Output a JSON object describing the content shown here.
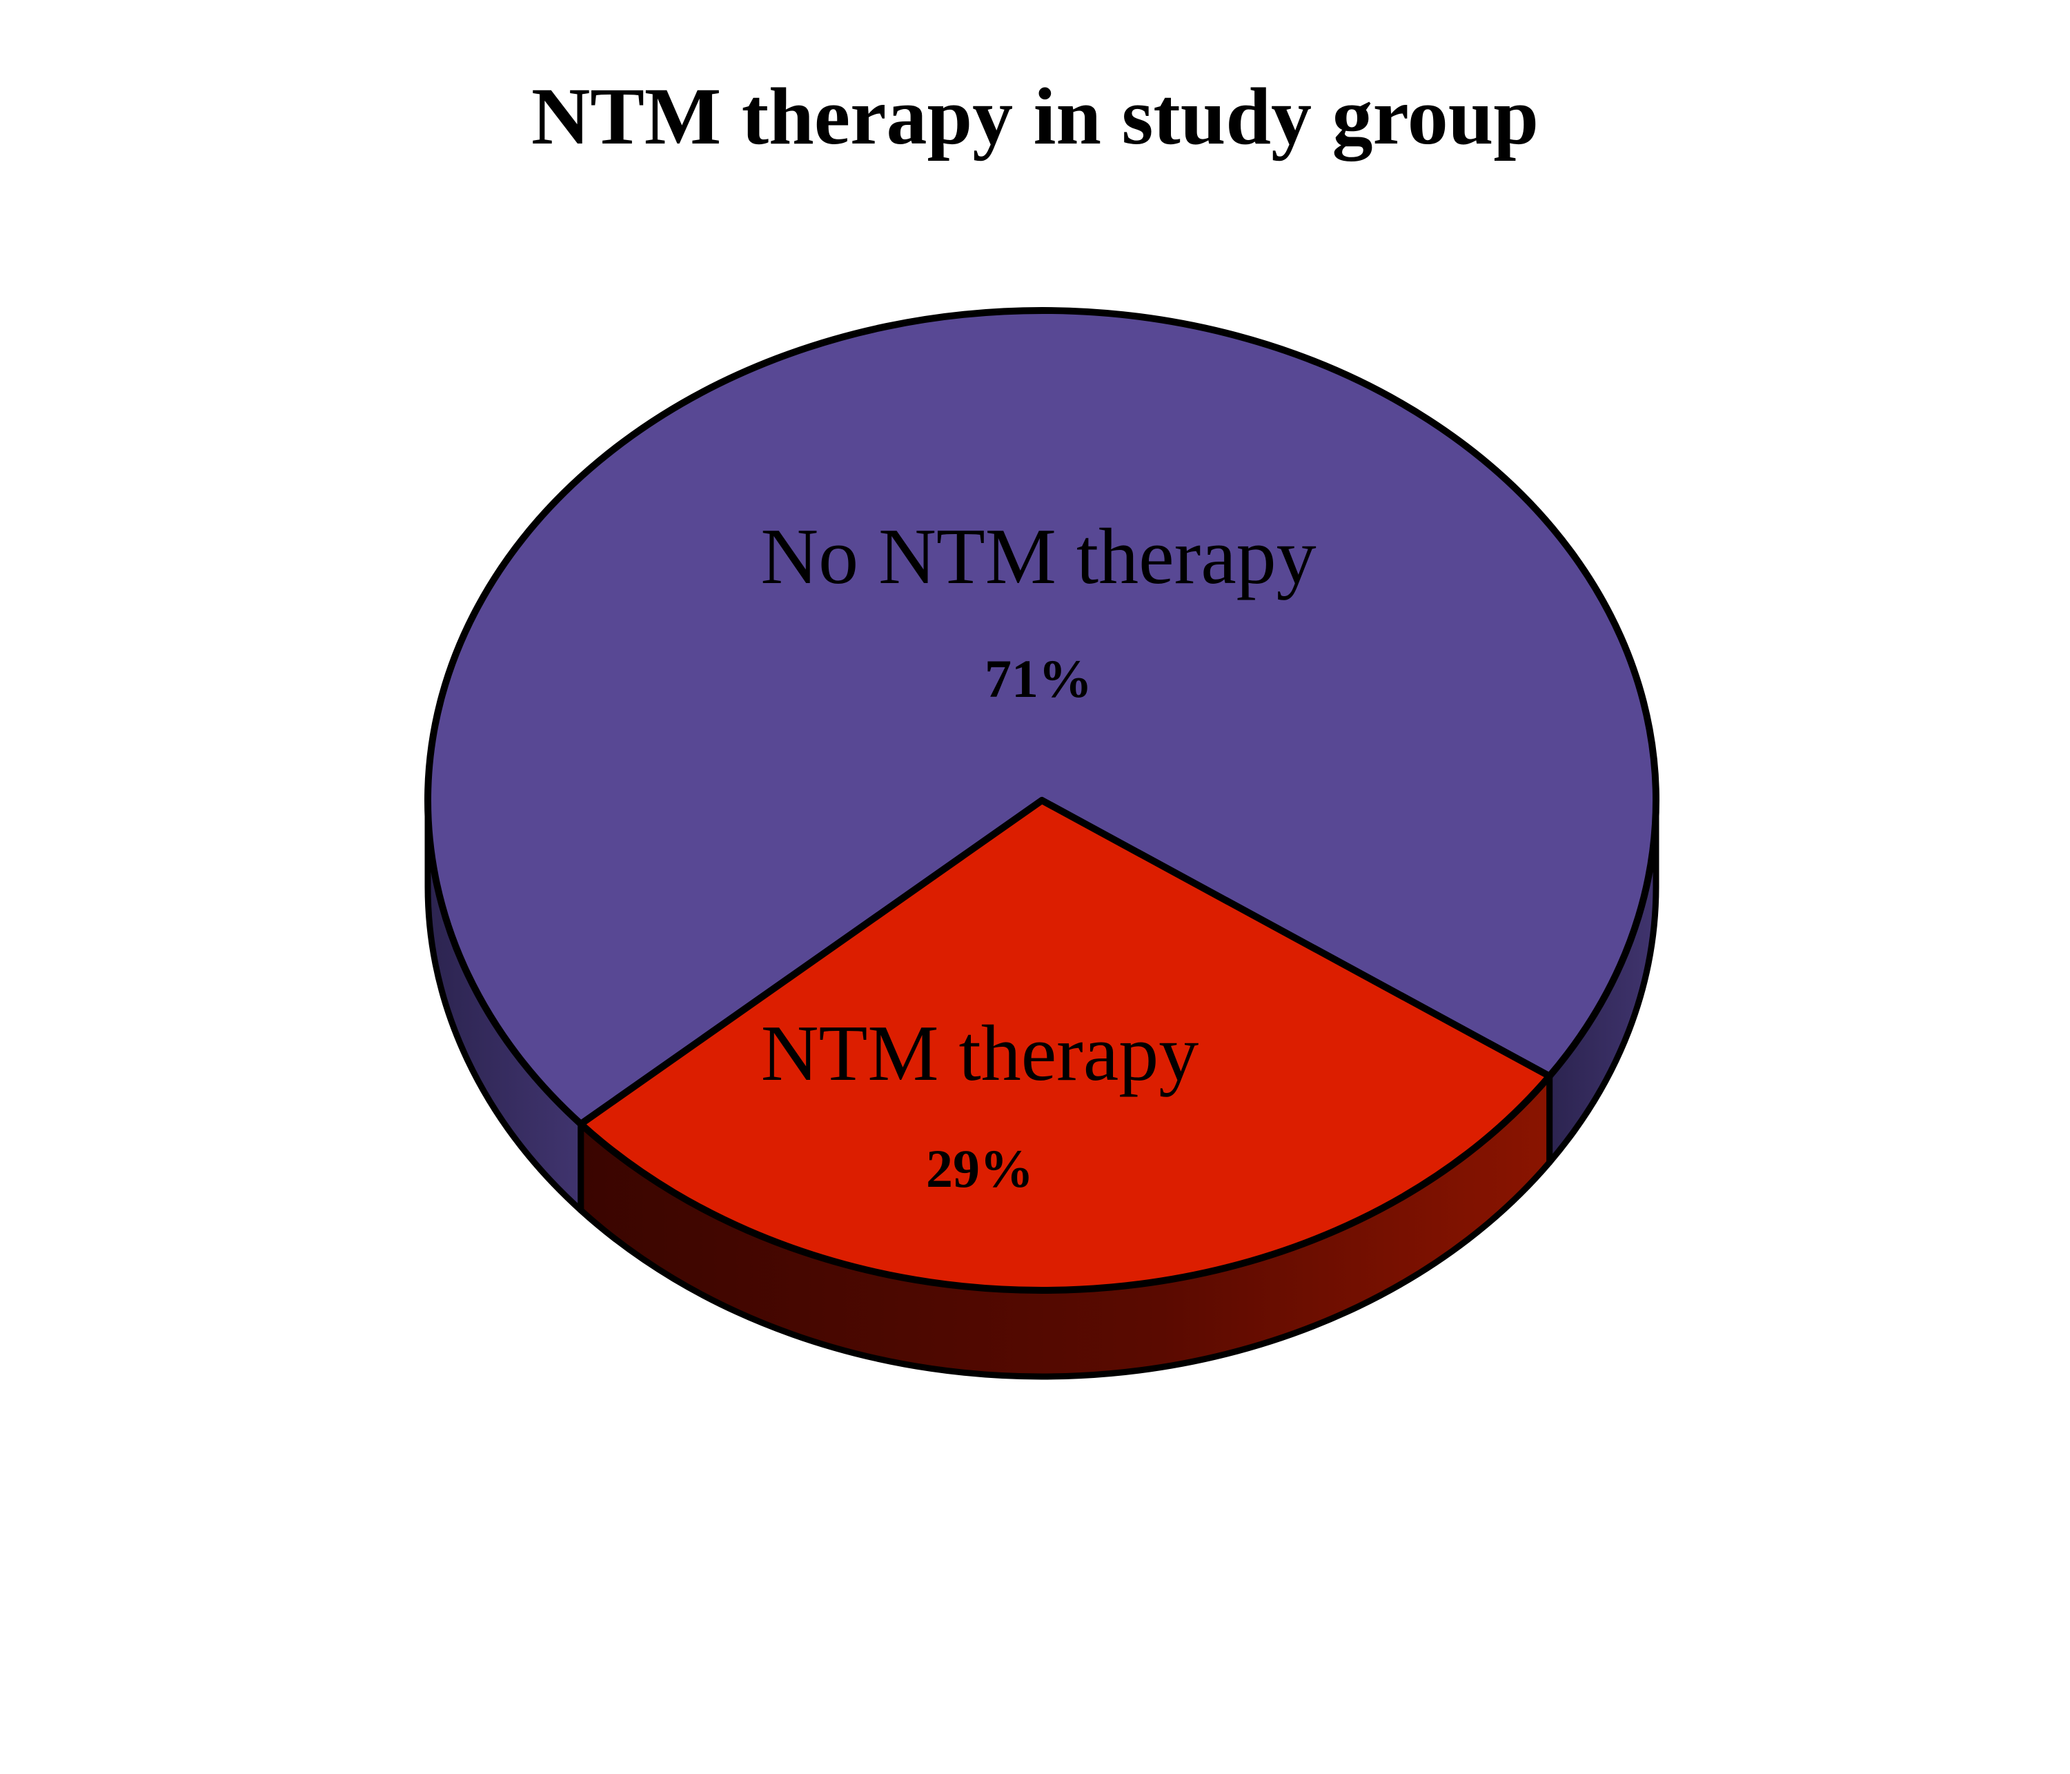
{
  "chart_data": {
    "type": "pie",
    "title": "NTM therapy in study group",
    "slices": [
      {
        "label": "No NTM therapy",
        "value": 71,
        "value_label": "71%",
        "color": "#584894"
      },
      {
        "label": "NTM therapy",
        "value": 29,
        "value_label": "29%",
        "color": "#dc1e00"
      }
    ],
    "style": "3d-tilted",
    "legend": "none",
    "value_format": "percent"
  }
}
